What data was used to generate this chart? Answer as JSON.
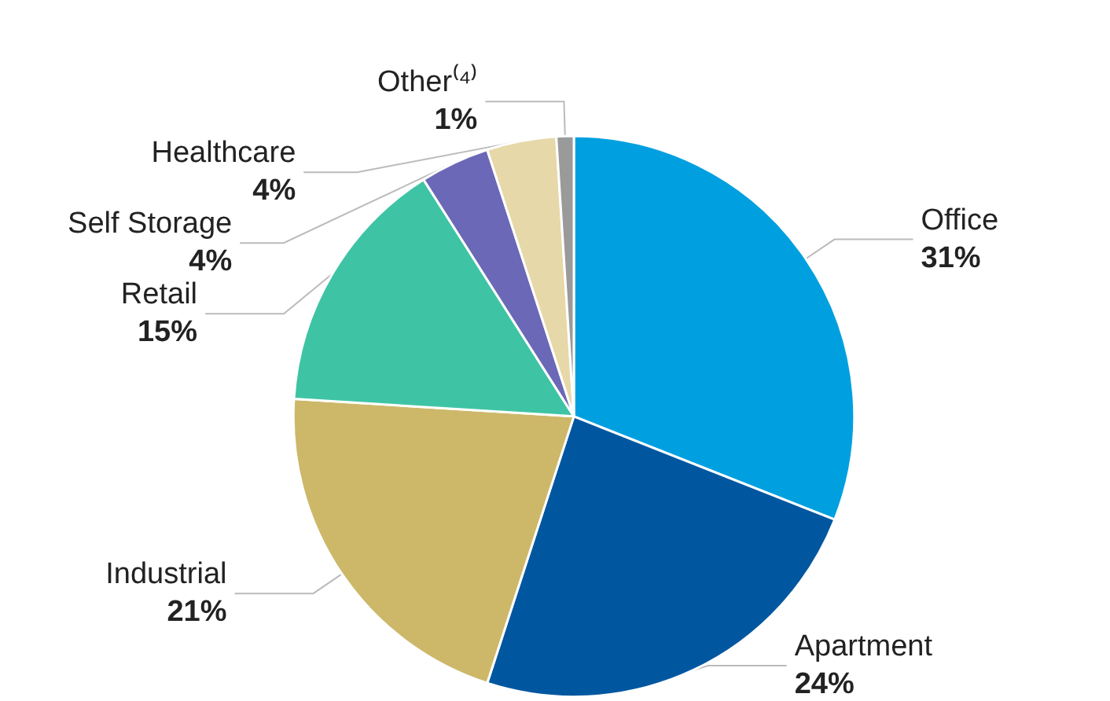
{
  "chart_data": {
    "type": "pie",
    "categories": [
      "Office",
      "Apartment",
      "Industrial",
      "Retail",
      "Self Storage",
      "Healthcare",
      "Other⁽⁴⁾"
    ],
    "values": [
      31,
      24,
      21,
      15,
      4,
      4,
      1
    ],
    "value_labels": [
      "31%",
      "24%",
      "21%",
      "15%",
      "4%",
      "4%",
      "1%"
    ],
    "colors": [
      "#00a0e0",
      "#0057a0",
      "#cdb86a",
      "#3ec4a4",
      "#6b68b8",
      "#e6d8a8",
      "#9a9a9a"
    ],
    "legend": false
  }
}
